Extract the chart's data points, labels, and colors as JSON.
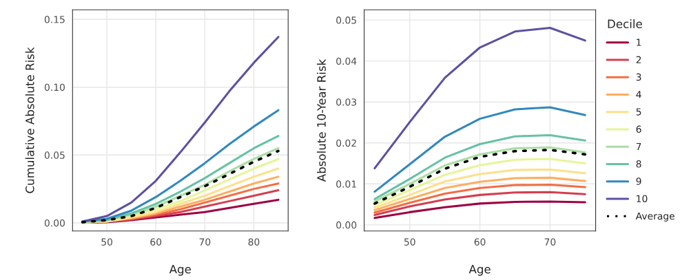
{
  "chart_data": [
    {
      "type": "line",
      "xlabel": "Age",
      "ylabel": "Cumulative Absolute Risk",
      "x": [
        45,
        50,
        55,
        60,
        65,
        70,
        75,
        80,
        85
      ],
      "xlim": [
        43,
        87
      ],
      "xticks": [
        50,
        60,
        70,
        80
      ],
      "ylim": [
        -0.006,
        0.157
      ],
      "yticks": [
        {
          "value": 0,
          "label": "0.00"
        },
        {
          "value": 0.05,
          "label": "0.05"
        },
        {
          "value": 0.1,
          "label": "0.10"
        },
        {
          "value": 0.15,
          "label": "0.15"
        }
      ],
      "grid": true,
      "series": [
        {
          "color": "#9e0142",
          "values": [
            0.0001,
            0.0005,
            0.002,
            0.004,
            0.006,
            0.008,
            0.011,
            0.014,
            0.017
          ]
        },
        {
          "color": "#d53e4f",
          "values": [
            0.0002,
            0.001,
            0.0025,
            0.005,
            0.008,
            0.012,
            0.016,
            0.02,
            0.024
          ]
        },
        {
          "color": "#f46d43",
          "values": [
            0.0002,
            0.001,
            0.003,
            0.006,
            0.01,
            0.015,
            0.02,
            0.025,
            0.029
          ]
        },
        {
          "color": "#fdae61",
          "values": [
            0.0003,
            0.001,
            0.0035,
            0.007,
            0.012,
            0.017,
            0.023,
            0.029,
            0.034
          ]
        },
        {
          "color": "#fee08b",
          "values": [
            0.0003,
            0.001,
            0.004,
            0.008,
            0.014,
            0.02,
            0.027,
            0.034,
            0.04
          ]
        },
        {
          "color": "#e6f598",
          "values": [
            0.0004,
            0.0015,
            0.005,
            0.01,
            0.016,
            0.024,
            0.032,
            0.04,
            0.047
          ]
        },
        {
          "color": "#abdda4",
          "values": [
            0.0005,
            0.002,
            0.006,
            0.012,
            0.02,
            0.028,
            0.038,
            0.047,
            0.055
          ]
        },
        {
          "color": "#66c2a5",
          "values": [
            0.001,
            0.002,
            0.007,
            0.014,
            0.023,
            0.033,
            0.044,
            0.055,
            0.064
          ]
        },
        {
          "color": "#3288bd",
          "values": [
            0.001,
            0.003,
            0.009,
            0.019,
            0.031,
            0.044,
            0.058,
            0.071,
            0.083
          ]
        },
        {
          "color": "#5e4fa2",
          "values": [
            0.001,
            0.005,
            0.015,
            0.031,
            0.052,
            0.074,
            0.097,
            0.118,
            0.137
          ]
        },
        {
          "color": "#000000",
          "line_style": "dotted",
          "values": [
            0.0005,
            0.002,
            0.005,
            0.011,
            0.019,
            0.027,
            0.036,
            0.045,
            0.053
          ]
        }
      ]
    },
    {
      "type": "line",
      "xlabel": "Age",
      "ylabel": "Absolute 10-Year Risk",
      "x": [
        45,
        50,
        55,
        60,
        65,
        70,
        75
      ],
      "xlim": [
        43.5,
        76.5
      ],
      "xticks": [
        50,
        60,
        70
      ],
      "ylim": [
        -0.0015,
        0.0525
      ],
      "yticks": [
        {
          "value": 0,
          "label": "0.00"
        },
        {
          "value": 0.01,
          "label": "0.01"
        },
        {
          "value": 0.02,
          "label": "0.02"
        },
        {
          "value": 0.03,
          "label": "0.03"
        },
        {
          "value": 0.04,
          "label": "0.04"
        },
        {
          "value": 0.05,
          "label": "0.05"
        }
      ],
      "grid": true,
      "legend": "right",
      "legend_title": "Decile",
      "series": [
        {
          "name": "1",
          "color": "#9e0142",
          "values": [
            0.0017,
            0.0031,
            0.0043,
            0.0052,
            0.0056,
            0.0057,
            0.0055
          ]
        },
        {
          "name": "2",
          "color": "#d53e4f",
          "values": [
            0.0024,
            0.0045,
            0.0062,
            0.0073,
            0.0079,
            0.008,
            0.0075
          ]
        },
        {
          "name": "3",
          "color": "#f46d43",
          "values": [
            0.003,
            0.0054,
            0.0076,
            0.009,
            0.0097,
            0.0098,
            0.0092
          ]
        },
        {
          "name": "4",
          "color": "#fdae61",
          "values": [
            0.0036,
            0.0063,
            0.009,
            0.0105,
            0.0114,
            0.0115,
            0.0107
          ]
        },
        {
          "name": "5",
          "color": "#fee08b",
          "values": [
            0.0042,
            0.0073,
            0.0106,
            0.0124,
            0.0134,
            0.0135,
            0.0126
          ]
        },
        {
          "name": "6",
          "color": "#e6f598",
          "values": [
            0.0048,
            0.0085,
            0.0122,
            0.0146,
            0.0159,
            0.0161,
            0.015
          ]
        },
        {
          "name": "7",
          "color": "#abdda4",
          "values": [
            0.0057,
            0.01,
            0.0145,
            0.0172,
            0.0187,
            0.0189,
            0.0177
          ]
        },
        {
          "name": "8",
          "color": "#66c2a5",
          "values": [
            0.0063,
            0.0112,
            0.0164,
            0.0197,
            0.0216,
            0.0219,
            0.0206
          ]
        },
        {
          "name": "9",
          "color": "#3288bd",
          "values": [
            0.0081,
            0.0148,
            0.0215,
            0.0259,
            0.0282,
            0.0287,
            0.0268
          ]
        },
        {
          "name": "10",
          "color": "#5e4fa2",
          "values": [
            0.0138,
            0.0251,
            0.0359,
            0.0433,
            0.0472,
            0.0481,
            0.045
          ]
        },
        {
          "name": "Average",
          "color": "#000000",
          "line_style": "dotted",
          "values": [
            0.0052,
            0.0093,
            0.0137,
            0.0166,
            0.018,
            0.0183,
            0.0172
          ]
        }
      ]
    }
  ]
}
